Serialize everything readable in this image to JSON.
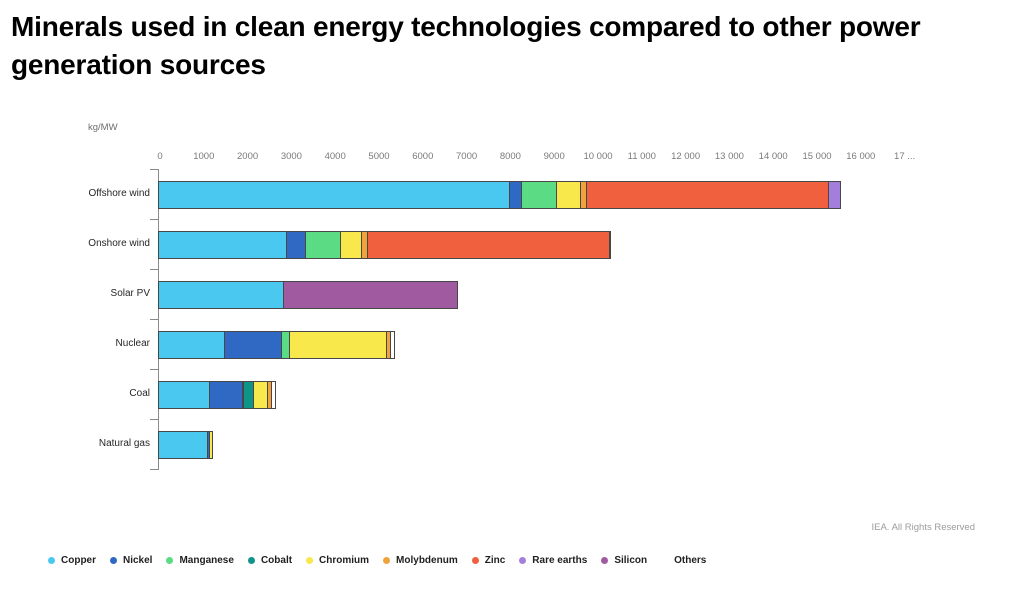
{
  "title": "Minerals used in clean energy technologies compared to other power generation sources",
  "footer": {
    "copyright": "IEA. All Rights Reserved"
  },
  "chart_data": {
    "type": "bar",
    "orientation": "horizontal",
    "stacked": true,
    "title": "Minerals used in clean energy technologies compared to other power generation sources",
    "unit_label": "kg/MW",
    "xlabel": "kg/MW",
    "xlim": [
      0,
      17400
    ],
    "grid": false,
    "legend_position": "bottom",
    "x_ticks": [
      {
        "value": 0,
        "label": "0"
      },
      {
        "value": 1000,
        "label": "1000"
      },
      {
        "value": 2000,
        "label": "2000"
      },
      {
        "value": 3000,
        "label": "3000"
      },
      {
        "value": 4000,
        "label": "4000"
      },
      {
        "value": 5000,
        "label": "5000"
      },
      {
        "value": 6000,
        "label": "6000"
      },
      {
        "value": 7000,
        "label": "7000"
      },
      {
        "value": 8000,
        "label": "8000"
      },
      {
        "value": 9000,
        "label": "9000"
      },
      {
        "value": 10000,
        "label": "10 000"
      },
      {
        "value": 11000,
        "label": "11 000"
      },
      {
        "value": 12000,
        "label": "12 000"
      },
      {
        "value": 13000,
        "label": "13 000"
      },
      {
        "value": 14000,
        "label": "14 000"
      },
      {
        "value": 15000,
        "label": "15 000"
      },
      {
        "value": 16000,
        "label": "16 000"
      },
      {
        "value": 17000,
        "label": "17 ..."
      }
    ],
    "categories": [
      "Offshore wind",
      "Onshore wind",
      "Solar PV",
      "Nuclear",
      "Coal",
      "Natural gas"
    ],
    "series": [
      {
        "name": "Copper",
        "color": "#4bc8f0",
        "values": [
          8000,
          2900,
          2822,
          1473,
          1150,
          1100
        ]
      },
      {
        "name": "Nickel",
        "color": "#3069c4",
        "values": [
          240,
          404,
          0,
          1297,
          721,
          16
        ]
      },
      {
        "name": "Manganese",
        "color": "#5cdb85",
        "values": [
          790,
          780,
          0,
          148,
          5,
          0
        ]
      },
      {
        "name": "Cobalt",
        "color": "#0e9488",
        "values": [
          0,
          0,
          0,
          0,
          201,
          0
        ]
      },
      {
        "name": "Chromium",
        "color": "#f8e84b",
        "values": [
          525,
          470,
          0,
          2190,
          308,
          48
        ]
      },
      {
        "name": "Molybdenum",
        "color": "#f0a33c",
        "values": [
          109,
          99,
          0,
          70,
          66,
          0
        ]
      },
      {
        "name": "Zinc",
        "color": "#f0603f",
        "values": [
          5500,
          5500,
          0,
          0,
          0,
          0
        ]
      },
      {
        "name": "Rare earths",
        "color": "#a37fdb",
        "values": [
          239,
          14,
          0,
          0,
          0,
          0
        ]
      },
      {
        "name": "Silicon",
        "color": "#a05aa0",
        "values": [
          0,
          0,
          3948,
          0,
          0,
          0
        ]
      },
      {
        "name": "Others",
        "color": "#ffffff",
        "values": [
          0,
          0,
          0,
          80,
          50,
          0
        ]
      }
    ]
  }
}
